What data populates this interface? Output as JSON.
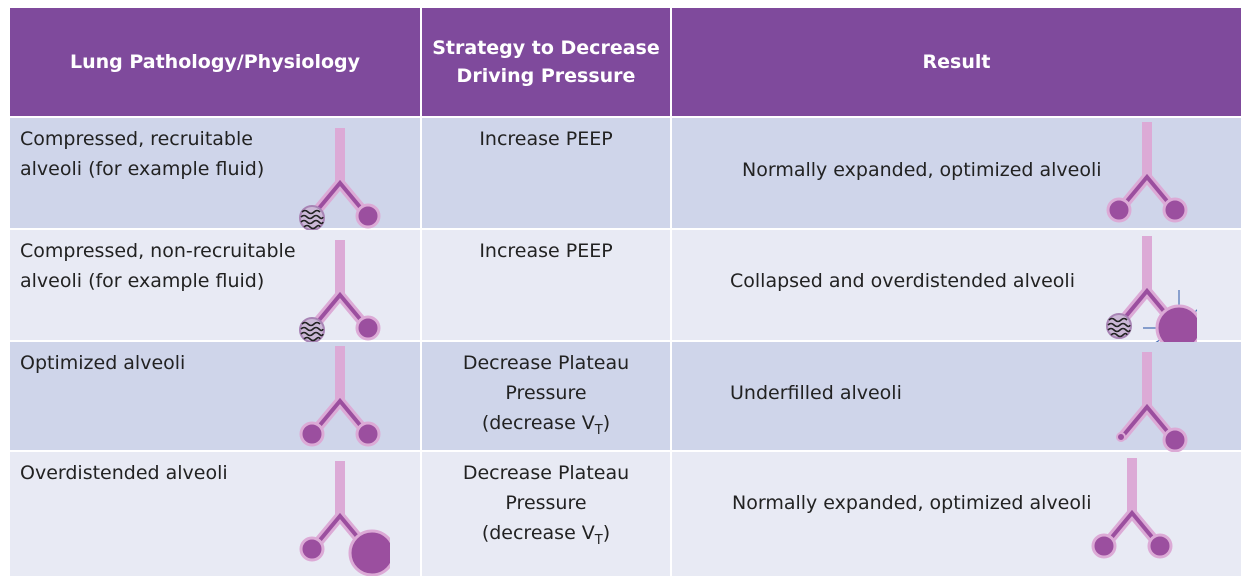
{
  "table": {
    "headers": [
      "Lung Pathology/Physiology",
      "Strategy to Decrease Driving Pressure",
      "Result"
    ],
    "rows": [
      {
        "pathology": "Compressed, recruitable alveoli (for example fluid)",
        "strategy": {
          "text": "Increase PEEP"
        },
        "result": "Normally expanded, optimized alveoli"
      },
      {
        "pathology": "Compressed, non-recruitable alveoli (for example fluid)",
        "strategy": {
          "text": "Increase PEEP"
        },
        "result": "Collapsed and overdistended alveoli"
      },
      {
        "pathology": "Optimized alveoli",
        "strategy": {
          "text": "Decrease Plateau Pressure",
          "note": "(decrease V",
          "subscript": "T",
          "close": ")"
        },
        "result": "Underfilled alveoli"
      },
      {
        "pathology": "Overdistended alveoli",
        "strategy": {
          "text": "Decrease Plateau Pressure",
          "note": "(decrease V",
          "subscript": "T",
          "close": ")"
        },
        "result": "Normally expanded, optimized alveoli"
      }
    ]
  }
}
